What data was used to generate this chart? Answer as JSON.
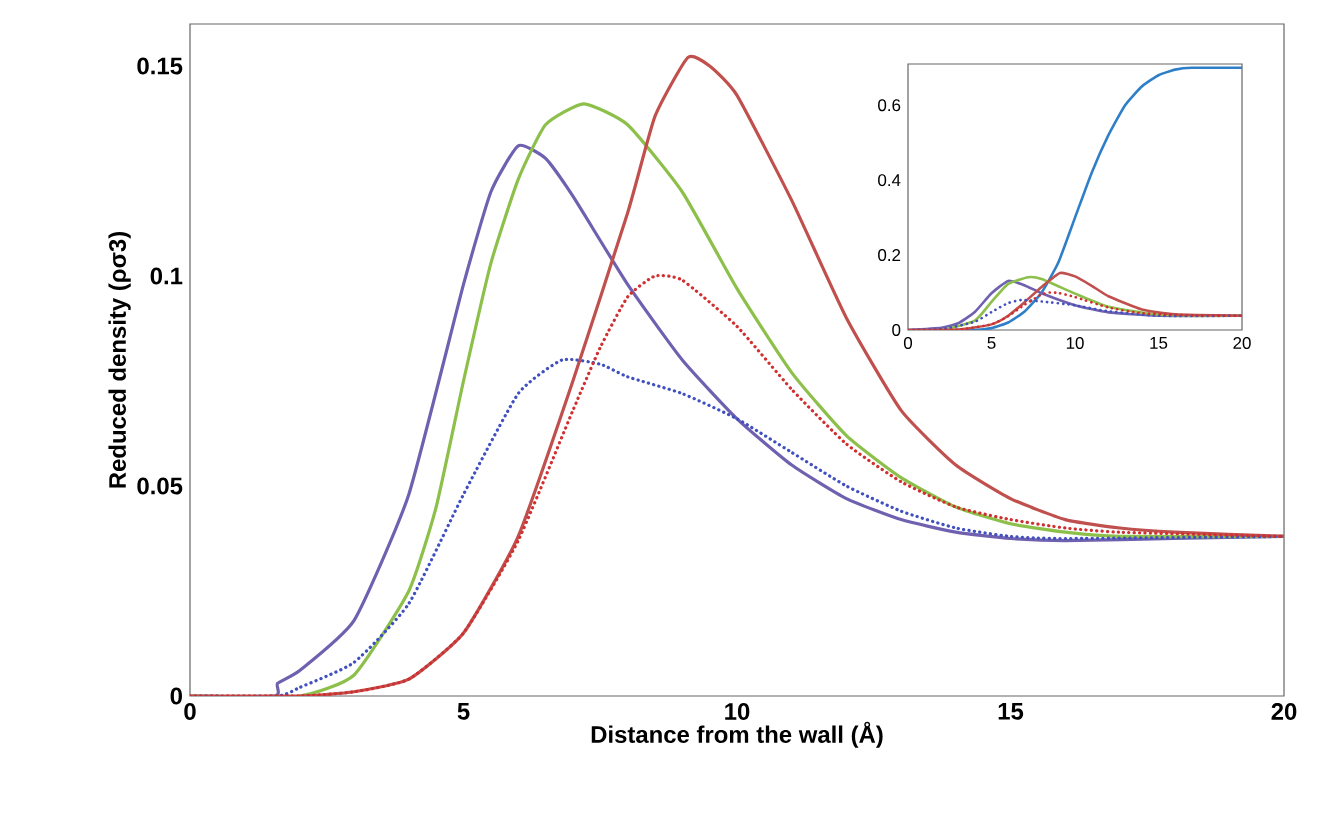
{
  "chart_data": [
    {
      "type": "line",
      "xlabel": "Distance from the wall (Å)",
      "ylabel": "Reduced density (ρσ3)",
      "xlim": [
        0,
        20
      ],
      "ylim": [
        0,
        0.16
      ],
      "xticks": [
        0,
        5,
        10,
        15,
        20
      ],
      "yticks": [
        0,
        0.05,
        0.1,
        0.15
      ],
      "marker": "none",
      "series": [
        {
          "color": "#7060b0",
          "line_style": "solid",
          "x": [
            0,
            1.55,
            1.6,
            2,
            3,
            4,
            5,
            5.5,
            6,
            6.5,
            7,
            8,
            9,
            10,
            11,
            12,
            13,
            14,
            15,
            16,
            18,
            20
          ],
          "values": [
            0,
            0,
            0.003,
            0.006,
            0.018,
            0.048,
            0.098,
            0.12,
            0.131,
            0.128,
            0.119,
            0.098,
            0.08,
            0.066,
            0.055,
            0.047,
            0.042,
            0.039,
            0.0375,
            0.037,
            0.0375,
            0.038
          ]
        },
        {
          "color": "#8cc04a",
          "line_style": "solid",
          "x": [
            0,
            2,
            3,
            4,
            4.5,
            5,
            5.5,
            6,
            6.5,
            7.2,
            8,
            9,
            10,
            11,
            12,
            13,
            14,
            15,
            16,
            17,
            20
          ],
          "values": [
            0,
            0,
            0.005,
            0.025,
            0.045,
            0.075,
            0.103,
            0.123,
            0.136,
            0.141,
            0.136,
            0.12,
            0.097,
            0.077,
            0.062,
            0.052,
            0.045,
            0.041,
            0.039,
            0.038,
            0.038
          ]
        },
        {
          "color": "#c0504d",
          "line_style": "solid",
          "x": [
            0,
            2,
            3,
            4,
            5,
            6,
            7,
            8,
            8.5,
            9.1,
            9.5,
            10,
            11,
            12,
            13,
            14,
            15,
            16,
            17,
            18,
            20
          ],
          "values": [
            0,
            0,
            0.001,
            0.004,
            0.015,
            0.038,
            0.075,
            0.115,
            0.138,
            0.152,
            0.15,
            0.143,
            0.118,
            0.09,
            0.068,
            0.055,
            0.047,
            0.042,
            0.04,
            0.039,
            0.038
          ]
        },
        {
          "color": "#4050c0",
          "line_style": "dotted",
          "x": [
            0,
            1.6,
            2,
            3,
            4,
            5,
            6,
            6.8,
            7.5,
            8,
            9,
            10,
            11,
            12,
            13,
            14,
            15,
            16,
            20
          ],
          "values": [
            0,
            0,
            0.002,
            0.008,
            0.022,
            0.048,
            0.072,
            0.08,
            0.079,
            0.076,
            0.072,
            0.066,
            0.058,
            0.05,
            0.044,
            0.04,
            0.038,
            0.0375,
            0.038
          ]
        },
        {
          "color": "#d03030",
          "line_style": "dotted",
          "x": [
            0,
            2,
            3,
            4,
            5,
            6,
            7,
            7.5,
            8,
            8.5,
            9,
            10,
            11,
            12,
            13,
            14,
            15,
            16,
            17,
            20
          ],
          "values": [
            0,
            0,
            0.001,
            0.004,
            0.015,
            0.037,
            0.068,
            0.083,
            0.095,
            0.1,
            0.099,
            0.088,
            0.073,
            0.06,
            0.051,
            0.045,
            0.042,
            0.04,
            0.039,
            0.038
          ]
        }
      ]
    },
    {
      "type": "line",
      "xlim": [
        0,
        20
      ],
      "ylim": [
        0,
        0.71
      ],
      "xticks": [
        0,
        5,
        10,
        15,
        20
      ],
      "yticks": [
        0,
        0.2,
        0.4,
        0.6
      ],
      "marker": "none",
      "series": [
        {
          "color": "#2e7fc8",
          "line_style": "solid",
          "x": [
            0,
            4,
            5,
            6,
            7,
            8,
            9,
            10,
            11,
            12,
            13,
            14,
            15,
            16,
            17,
            20
          ],
          "values": [
            0,
            0,
            0.005,
            0.02,
            0.05,
            0.1,
            0.18,
            0.3,
            0.42,
            0.52,
            0.6,
            0.65,
            0.68,
            0.695,
            0.7,
            0.7
          ]
        },
        {
          "color": "#7060b0",
          "line_style": "solid",
          "x": [
            0,
            2,
            3,
            4,
            5,
            6,
            7,
            8,
            10,
            12,
            15,
            20
          ],
          "values": [
            0,
            0.006,
            0.018,
            0.048,
            0.098,
            0.131,
            0.119,
            0.098,
            0.066,
            0.047,
            0.038,
            0.038
          ]
        },
        {
          "color": "#8cc04a",
          "line_style": "solid",
          "x": [
            0,
            2,
            4,
            5,
            6,
            7.2,
            8,
            10,
            12,
            15,
            20
          ],
          "values": [
            0,
            0,
            0.025,
            0.075,
            0.123,
            0.141,
            0.136,
            0.097,
            0.062,
            0.041,
            0.038
          ]
        },
        {
          "color": "#c0504d",
          "line_style": "solid",
          "x": [
            0,
            3,
            5,
            6,
            7,
            8,
            9.1,
            10,
            11,
            12,
            14,
            16,
            20
          ],
          "values": [
            0,
            0.001,
            0.015,
            0.038,
            0.075,
            0.115,
            0.152,
            0.143,
            0.118,
            0.09,
            0.055,
            0.042,
            0.038
          ]
        },
        {
          "color": "#4050c0",
          "line_style": "dotted",
          "x": [
            0,
            2,
            4,
            5,
            6,
            6.8,
            8,
            10,
            12,
            15,
            20
          ],
          "values": [
            0,
            0.002,
            0.022,
            0.048,
            0.072,
            0.08,
            0.076,
            0.066,
            0.05,
            0.038,
            0.038
          ]
        },
        {
          "color": "#d03030",
          "line_style": "dotted",
          "x": [
            0,
            3,
            5,
            6,
            7,
            8,
            8.5,
            9,
            10,
            12,
            14,
            17,
            20
          ],
          "values": [
            0,
            0.001,
            0.015,
            0.037,
            0.068,
            0.095,
            0.1,
            0.099,
            0.088,
            0.06,
            0.045,
            0.039,
            0.038
          ]
        }
      ]
    }
  ]
}
